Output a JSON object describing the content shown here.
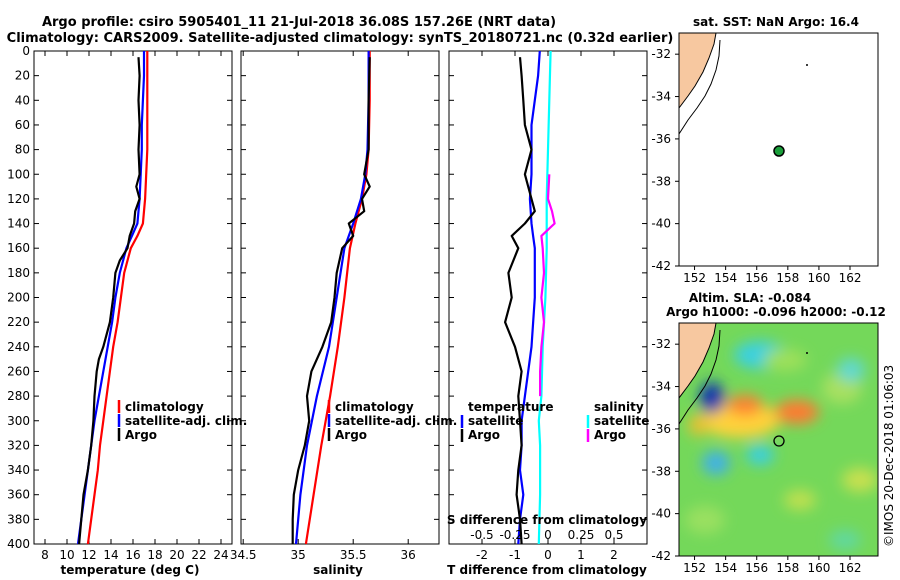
{
  "header": {
    "line1": "Argo profile: csiro 5905401_11 21-Jul-2018 36.08S 157.26E (NRT data)",
    "line2": "Climatology: CARS2009. Satellite-adjusted climatology: synTS_20180721.nc (0.32d earlier)"
  },
  "colors": {
    "climatology": "#ff0000",
    "satellite": "#0000ff",
    "argo": "#000000",
    "satellite_s": "#00ffff",
    "argo_s": "#ff00ff"
  },
  "chart_data": [
    {
      "id": "temperature",
      "type": "line",
      "xlabel": "temperature (deg C)",
      "ylabel": "",
      "xlim": [
        7,
        25
      ],
      "ylim": [
        400,
        0
      ],
      "xticks": [
        "8",
        "10",
        "12",
        "14",
        "16",
        "18",
        "20",
        "22",
        "24"
      ],
      "yticks": [
        "0",
        "20",
        "40",
        "60",
        "80",
        "100",
        "120",
        "140",
        "160",
        "180",
        "200",
        "220",
        "240",
        "260",
        "280",
        "300",
        "320",
        "340",
        "360",
        "380",
        "400"
      ],
      "legend": [
        "climatology",
        "satellite-adj. clim.",
        "Argo"
      ],
      "series": [
        {
          "name": "climatology",
          "color": "red",
          "depth": [
            0,
            20,
            40,
            60,
            80,
            100,
            120,
            140,
            150,
            160,
            180,
            200,
            220,
            240,
            260,
            280,
            300,
            320,
            340,
            360,
            380,
            400
          ],
          "values": [
            17.3,
            17.3,
            17.3,
            17.3,
            17.3,
            17.2,
            17.1,
            16.9,
            16.4,
            15.8,
            15.2,
            14.9,
            14.6,
            14.2,
            13.9,
            13.6,
            13.3,
            13.0,
            12.8,
            12.5,
            12.2,
            11.9
          ]
        },
        {
          "name": "satellite-adj. clim.",
          "color": "blue",
          "depth": [
            0,
            20,
            40,
            60,
            80,
            100,
            120,
            140,
            150,
            160,
            180,
            200,
            220,
            240,
            260,
            280,
            300,
            320,
            340,
            360,
            380,
            400
          ],
          "values": [
            17.0,
            17.0,
            16.9,
            16.8,
            16.8,
            16.7,
            16.6,
            16.4,
            15.9,
            15.4,
            14.8,
            14.4,
            14.1,
            13.7,
            13.3,
            12.9,
            12.5,
            12.2,
            11.9,
            11.6,
            11.3,
            11.0
          ]
        },
        {
          "name": "Argo",
          "color": "black",
          "depth": [
            5,
            20,
            40,
            60,
            80,
            100,
            110,
            120,
            130,
            140,
            150,
            160,
            170,
            180,
            200,
            220,
            240,
            250,
            260,
            280,
            300,
            320,
            340,
            360,
            380,
            400
          ],
          "values": [
            16.5,
            16.6,
            16.5,
            16.6,
            16.5,
            16.6,
            16.3,
            16.6,
            16.2,
            16.1,
            15.7,
            15.5,
            14.8,
            14.4,
            14.2,
            13.9,
            13.3,
            12.9,
            12.7,
            12.5,
            12.4,
            12.2,
            11.9,
            11.5,
            11.3,
            11.1
          ]
        }
      ]
    },
    {
      "id": "salinity",
      "type": "line",
      "xlabel": "salinity",
      "ylabel": "",
      "xlim": [
        34.48,
        36.28
      ],
      "ylim": [
        400,
        0
      ],
      "xticks": [
        "34.5",
        "35",
        "35.5",
        "36"
      ],
      "legend": [
        "climatology",
        "satellite-adj. clim.",
        "Argo"
      ],
      "series": [
        {
          "name": "climatology",
          "color": "red",
          "depth": [
            0,
            40,
            80,
            100,
            120,
            140,
            160,
            200,
            240,
            280,
            320,
            360,
            400
          ],
          "values": [
            35.65,
            35.65,
            35.64,
            35.62,
            35.58,
            35.52,
            35.47,
            35.42,
            35.36,
            35.29,
            35.21,
            35.14,
            35.07
          ]
        },
        {
          "name": "satellite-adj. clim.",
          "color": "blue",
          "depth": [
            0,
            40,
            80,
            100,
            120,
            140,
            160,
            200,
            240,
            280,
            320,
            360,
            400
          ],
          "values": [
            35.64,
            35.64,
            35.63,
            35.61,
            35.57,
            35.5,
            35.42,
            35.35,
            35.28,
            35.17,
            35.08,
            35.02,
            34.98
          ]
        },
        {
          "name": "Argo",
          "color": "black",
          "depth": [
            5,
            40,
            80,
            100,
            110,
            120,
            130,
            140,
            150,
            160,
            180,
            200,
            220,
            240,
            260,
            280,
            300,
            320,
            340,
            360,
            380,
            400
          ],
          "values": [
            35.65,
            35.64,
            35.64,
            35.6,
            35.65,
            35.58,
            35.6,
            35.46,
            35.5,
            35.4,
            35.35,
            35.33,
            35.3,
            35.22,
            35.12,
            35.08,
            35.1,
            35.06,
            35.0,
            34.96,
            34.95,
            34.95
          ]
        }
      ]
    },
    {
      "id": "difference",
      "type": "line",
      "xlabel": "T difference from climatology",
      "top_label": "S difference from climatology",
      "xlim": [
        -3,
        3
      ],
      "ylim": [
        400,
        0
      ],
      "xticks": [
        "-2",
        "-1",
        "0",
        "1",
        "2"
      ],
      "top_xticks": [
        "-0.5",
        "-0.25",
        "0",
        "0.25",
        "0.5"
      ],
      "legend_titles": [
        "temperature",
        "salinity"
      ],
      "legend": [
        "satellite",
        "Argo",
        "satellite",
        "Argo"
      ],
      "series": [
        {
          "name": "temperature satellite",
          "color": "blue",
          "depth": [
            0,
            20,
            40,
            60,
            80,
            100,
            120,
            140,
            150,
            160,
            200,
            240,
            280,
            300,
            320,
            340,
            360,
            380,
            400
          ],
          "values": [
            -0.25,
            -0.3,
            -0.4,
            -0.5,
            -0.5,
            -0.5,
            -0.55,
            -0.5,
            -0.45,
            -0.4,
            -0.4,
            -0.5,
            -0.7,
            -0.8,
            -0.8,
            -0.85,
            -0.75,
            -0.85,
            -0.9
          ]
        },
        {
          "name": "temperature Argo",
          "color": "black",
          "depth": [
            5,
            20,
            40,
            60,
            80,
            100,
            120,
            130,
            140,
            150,
            160,
            180,
            200,
            220,
            240,
            260,
            280,
            300,
            320,
            340,
            360,
            380,
            400
          ],
          "values": [
            -0.85,
            -0.8,
            -0.75,
            -0.7,
            -0.5,
            -0.7,
            -0.5,
            -0.4,
            -0.7,
            -1.1,
            -0.9,
            -1.2,
            -1.1,
            -1.3,
            -1.0,
            -0.8,
            -0.9,
            -0.85,
            -0.8,
            -0.9,
            -0.95,
            -0.85,
            -0.8
          ]
        },
        {
          "name": "salinity satellite",
          "color": "cyan",
          "depth": [
            0,
            40,
            80,
            120,
            160,
            200,
            240,
            280,
            300,
            320,
            360,
            400
          ],
          "values": [
            0.02,
            0.01,
            0.0,
            -0.01,
            -0.01,
            -0.02,
            -0.04,
            -0.05,
            -0.07,
            -0.06,
            -0.06,
            -0.07
          ]
        },
        {
          "name": "salinity Argo",
          "color": "magenta",
          "depth": [
            100,
            120,
            130,
            140,
            145,
            150,
            160,
            180,
            200,
            220,
            240,
            260,
            280
          ],
          "values": [
            0.01,
            0.0,
            0.03,
            0.05,
            0.0,
            -0.05,
            -0.04,
            -0.03,
            -0.05,
            -0.03,
            -0.05,
            -0.06,
            -0.06
          ]
        }
      ]
    }
  ],
  "map_top": {
    "title": "sat. SST: NaN Argo: 16.4",
    "yticks": [
      "-32",
      "-34",
      "-36",
      "-38",
      "-40",
      "-42"
    ],
    "xticks": [
      "152",
      "154",
      "156",
      "158",
      "160",
      "162"
    ],
    "argo_position": {
      "lon": 157.26,
      "lat": -36.08
    }
  },
  "map_bottom": {
    "title1": "Altim. SLA: -0.084",
    "title2": "Argo h1000: -0.096 h2000: -0.12",
    "yticks": [
      "-32",
      "-34",
      "-36",
      "-38",
      "-40",
      "-42"
    ],
    "xticks": [
      "152",
      "154",
      "156",
      "158",
      "160",
      "162"
    ],
    "argo_position": {
      "lon": 157.26,
      "lat": -36.08
    }
  },
  "watermark": "©IMOS 20-Dec-2018 01:06:03"
}
